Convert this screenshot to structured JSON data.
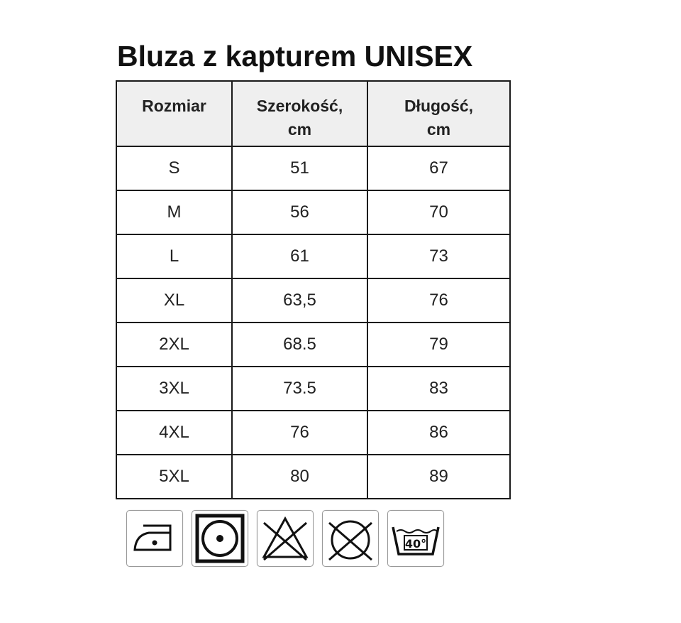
{
  "title": "Bluza z kapturem UNISEX",
  "table": {
    "headers": [
      [
        "Rozmiar",
        ""
      ],
      [
        "Szerokość,",
        "cm"
      ],
      [
        "Długość,",
        "cm"
      ]
    ],
    "rows": [
      [
        "S",
        "51",
        "67"
      ],
      [
        "M",
        "56",
        "70"
      ],
      [
        "L",
        "61",
        "73"
      ],
      [
        "XL",
        "63,5",
        "76"
      ],
      [
        "2XL",
        "68.5",
        "79"
      ],
      [
        "3XL",
        "73.5",
        "83"
      ],
      [
        "4XL",
        "76",
        "86"
      ],
      [
        "5XL",
        "80",
        "89"
      ]
    ]
  },
  "care_icons": [
    {
      "name": "iron-low-temp-icon"
    },
    {
      "name": "tumble-dry-low-icon"
    },
    {
      "name": "do-not-bleach-icon"
    },
    {
      "name": "do-not-dry-clean-icon"
    },
    {
      "name": "wash-40-icon",
      "label": "40°"
    }
  ]
}
